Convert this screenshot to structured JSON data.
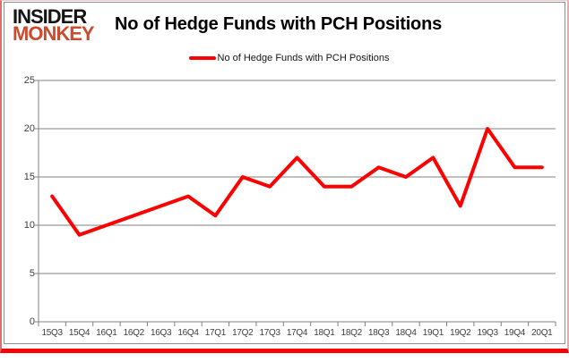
{
  "brand": {
    "line1": "INSIDER",
    "line2": "MONKEY",
    "line2_color": "#cc4b2e"
  },
  "header": {
    "title": "No of Hedge Funds with PCH Positions"
  },
  "legend": {
    "label": "No of Hedge Funds with PCH Positions",
    "swatch_color": "#ff0000"
  },
  "chart_data": {
    "type": "line",
    "title": "No of Hedge Funds with PCH Positions",
    "categories": [
      "15Q3",
      "15Q4",
      "16Q1",
      "16Q2",
      "16Q3",
      "16Q4",
      "17Q1",
      "17Q2",
      "17Q3",
      "17Q4",
      "18Q1",
      "18Q2",
      "18Q3",
      "18Q4",
      "19Q1",
      "19Q2",
      "19Q3",
      "19Q4",
      "20Q1"
    ],
    "series": [
      {
        "name": "No of Hedge Funds with PCH Positions",
        "color": "#ff0000",
        "values": [
          13,
          9,
          10,
          11,
          12,
          13,
          11,
          15,
          14,
          17,
          14,
          14,
          16,
          15,
          17,
          12,
          20,
          16,
          16
        ]
      }
    ],
    "xlabel": "",
    "ylabel": "",
    "ylim": [
      0,
      25
    ],
    "yticks": [
      0,
      5,
      10,
      15,
      20,
      25
    ],
    "grid": true,
    "legend_position": "top-center",
    "colors": {
      "gridline": "#808080",
      "axis": "#808080",
      "tick_label": "#3d3d3d"
    }
  }
}
